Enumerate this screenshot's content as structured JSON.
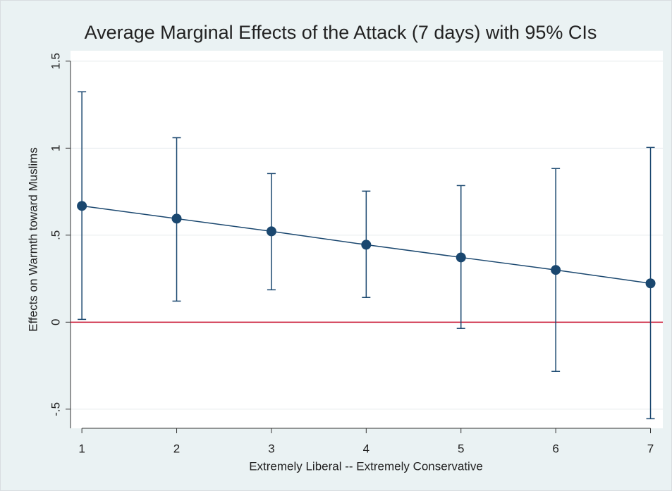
{
  "chart_data": {
    "type": "errorbar-line",
    "title": "Average Marginal Effects of the Attack (7 days) with 95% CIs",
    "x_label": "Extremely Liberal -- Extremely Conservative",
    "y_label": "Effects on Warmth toward Muslims",
    "x": [
      1,
      2,
      3,
      4,
      5,
      6,
      7
    ],
    "series": [
      {
        "color": "#1a476f",
        "values": [
          0.668,
          0.595,
          0.522,
          0.445,
          0.372,
          0.3,
          0.223
        ],
        "lower": [
          0.016,
          0.121,
          0.186,
          0.142,
          -0.036,
          -0.283,
          -0.555
        ],
        "upper": [
          1.324,
          1.06,
          0.854,
          0.753,
          0.785,
          0.883,
          1.004
        ]
      }
    ],
    "xlim": [
      0.88,
      7.13
    ],
    "xticks": [
      1,
      2,
      3,
      4,
      5,
      6,
      7
    ],
    "ylim": [
      -0.61,
      1.56
    ],
    "yticks": [
      {
        "value": -0.5,
        "label": "-.5"
      },
      0,
      {
        "value": 0.5,
        "label": ".5"
      },
      1,
      1.5
    ],
    "grid": true,
    "reference_line": {
      "value": 0,
      "color": "#c8102e"
    }
  }
}
